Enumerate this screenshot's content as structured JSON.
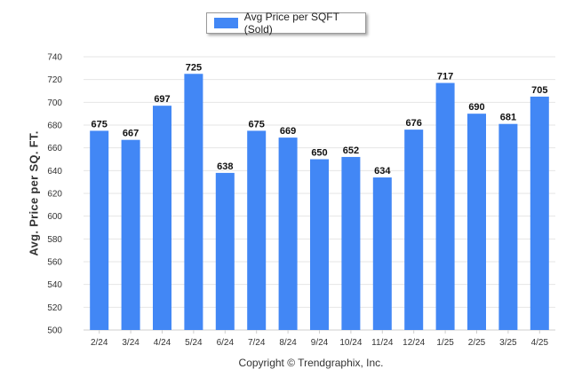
{
  "legend": {
    "label": "Avg Price per SQFT (Sold)",
    "color": "#4287f5"
  },
  "footer": {
    "copyright": "Copyright © Trendgraphix, Inc."
  },
  "chart_data": {
    "type": "bar",
    "categories": [
      "2/24",
      "3/24",
      "4/24",
      "5/24",
      "6/24",
      "7/24",
      "8/24",
      "9/24",
      "10/24",
      "11/24",
      "12/24",
      "1/25",
      "2/25",
      "3/25",
      "4/25"
    ],
    "series": [
      {
        "name": "Avg Price per SQFT (Sold)",
        "values": [
          675,
          667,
          697,
          725,
          638,
          675,
          669,
          650,
          652,
          634,
          676,
          717,
          690,
          681,
          705
        ]
      }
    ],
    "ylabel": "Avg. Price per SQ. FT.",
    "xlabel": "",
    "ylim": [
      500,
      740
    ],
    "yticks": [
      500,
      520,
      540,
      560,
      580,
      600,
      620,
      640,
      660,
      680,
      700,
      720,
      740
    ],
    "grid": true,
    "legend_position": "top-center",
    "bar_color": "#4287f5"
  }
}
